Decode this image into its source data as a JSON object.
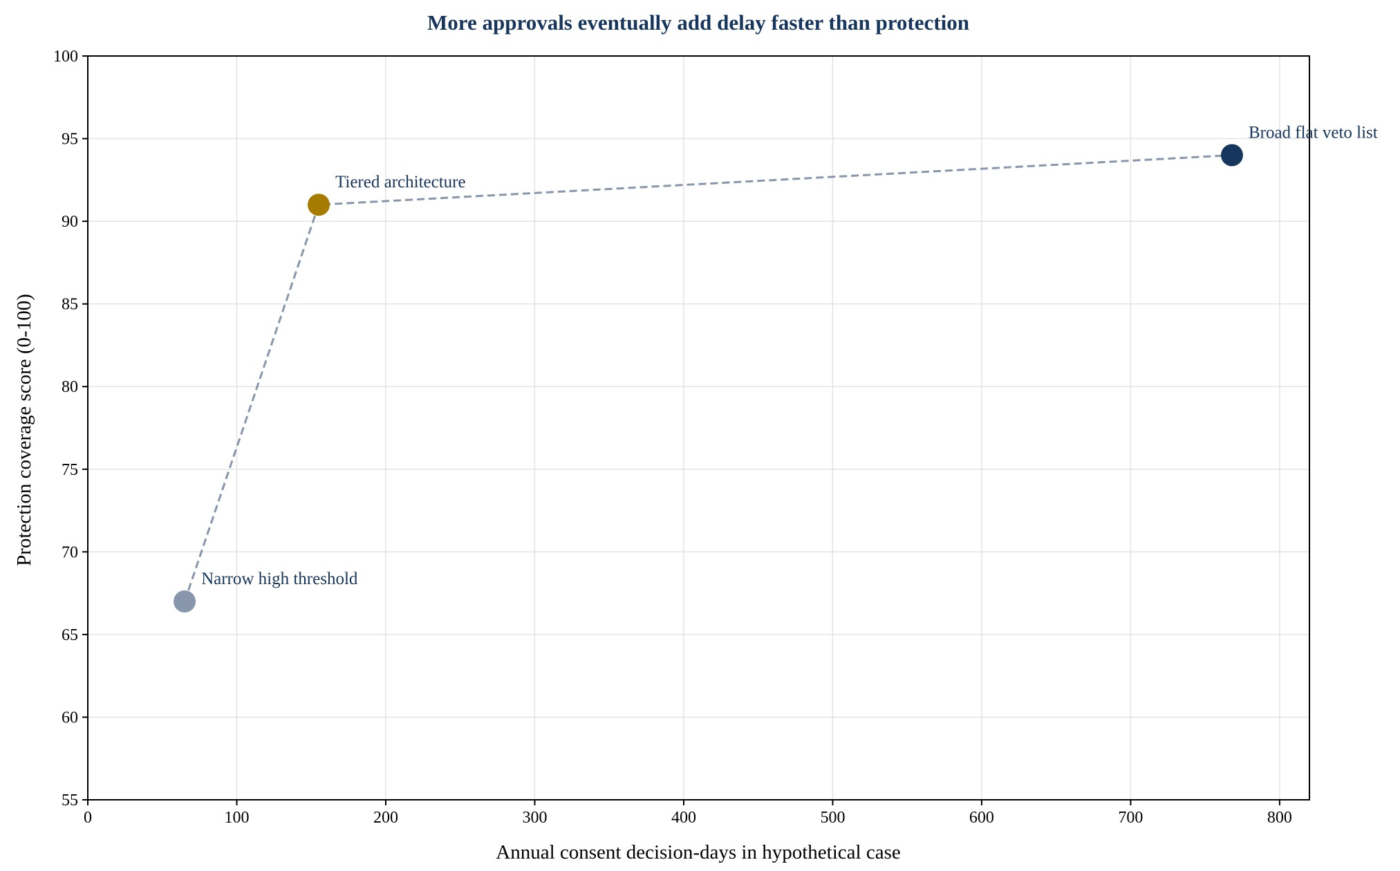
{
  "chart_data": {
    "type": "scatter",
    "title": "More approvals eventually add delay faster than protection",
    "xlabel": "Annual consent decision-days in hypothetical case",
    "ylabel": "Protection coverage score (0-100)",
    "xlim": [
      0,
      820
    ],
    "ylim": [
      55,
      100
    ],
    "xticks": [
      0,
      100,
      200,
      300,
      400,
      500,
      600,
      700,
      800
    ],
    "yticks": [
      55,
      60,
      65,
      70,
      75,
      80,
      85,
      90,
      95,
      100
    ],
    "grid": true,
    "connector": "dashed",
    "points": [
      {
        "label": "Narrow high threshold",
        "x": 65,
        "y": 67,
        "color": "#8796ab"
      },
      {
        "label": "Tiered architecture",
        "x": 155,
        "y": 91,
        "color": "#a67c00"
      },
      {
        "label": "Broad flat veto list",
        "x": 768,
        "y": 94,
        "color": "#17365d"
      }
    ]
  },
  "colors": {
    "title": "#17365d",
    "point_label": "#17365d",
    "connector": "#8796ab",
    "grid": "#e3e3e3",
    "axis": "#000000"
  }
}
